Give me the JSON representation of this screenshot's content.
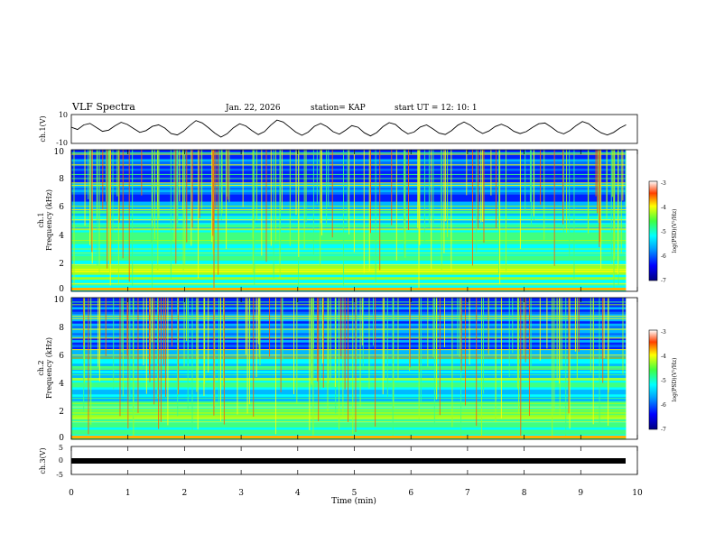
{
  "header": {
    "title": "VLF Spectra",
    "date": "Jan. 22, 2026",
    "station": "station= KAP",
    "start": "start  UT =   12: 10: 1"
  },
  "chart_data": [
    {
      "type": "line",
      "name": "ch1-timeseries",
      "ylabel": "ch.1(V)",
      "ylim": [
        -10,
        10
      ],
      "yticks": [
        "10",
        "-10"
      ],
      "series": [
        {
          "name": "ch.1",
          "values": [
            1.2,
            -0.4,
            2.8,
            3.9,
            1.1,
            -1.6,
            -0.8,
            2.2,
            4.6,
            3.1,
            0.3,
            -2.4,
            -1.1,
            1.8,
            2.9,
            0.6,
            -3.2,
            -4.1,
            -1.5,
            2.4,
            5.8,
            4.2,
            0.9,
            -2.8,
            -5.6,
            -3.3,
            0.8,
            3.6,
            2.1,
            -1.2,
            -3.9,
            -1.8,
            2.6,
            6.2,
            4.8,
            1.4,
            -2.1,
            -4.4,
            -2.2,
            1.9,
            3.8,
            1.6,
            -1.9,
            -3.6,
            -0.9,
            2.3,
            1.2,
            -2.6,
            -4.8,
            -2.5,
            1.6,
            4.4,
            3.2,
            -0.6,
            -3.4,
            -2.1,
            1.4,
            2.8,
            0.2,
            -2.9,
            -3.8,
            -1.2,
            2.6,
            4.9,
            2.7,
            -0.8,
            -3.1,
            -1.4,
            1.7,
            3.3,
            1.5,
            -1.6,
            -3.2,
            -1.8,
            1.1,
            3.6,
            4.1,
            1.3,
            -1.9,
            -3.4,
            -1.1,
            2.4,
            5.2,
            3.6,
            0.2,
            -2.6,
            -4.2,
            -2.4,
            0.6,
            2.9
          ]
        }
      ],
      "x_range_min": [
        0,
        9.8
      ]
    },
    {
      "type": "heatmap",
      "name": "ch1-spectrogram",
      "ylabel": "ch.1",
      "ylabel2": "Frequency (kHz)",
      "ylim": [
        0,
        10
      ],
      "xlim": [
        0,
        10
      ],
      "yticks": [
        "0",
        "2",
        "4",
        "6",
        "8",
        "10"
      ],
      "colorbar": {
        "label": "log(PSD)(V²/Hz)",
        "range": [
          -7,
          -3
        ],
        "ticks": [
          "-3",
          "-4",
          "-5",
          "-6",
          "-7"
        ]
      }
    },
    {
      "type": "heatmap",
      "name": "ch2-spectrogram",
      "ylabel": "ch.2",
      "ylabel2": "Frequency (kHz)",
      "ylim": [
        0,
        10
      ],
      "xlim": [
        0,
        10
      ],
      "yticks": [
        "0",
        "2",
        "4",
        "6",
        "8",
        "10"
      ],
      "colorbar": {
        "label": "log(PSD)(V²/Hz)",
        "range": [
          -7,
          -3
        ],
        "ticks": [
          "-3",
          "-4",
          "-5",
          "-6",
          "-7"
        ]
      }
    },
    {
      "type": "line",
      "name": "ch3-timeseries",
      "ylabel": "ch.3(V)",
      "ylim": [
        -5,
        5
      ],
      "yticks": [
        "5",
        "0",
        "-5"
      ],
      "series": [
        {
          "name": "ch.3",
          "values": [
            -1,
            -1
          ]
        }
      ],
      "xlabel": "Time  (min)",
      "xlim": [
        0,
        10
      ],
      "xticks": [
        "0",
        "1",
        "2",
        "3",
        "4",
        "5",
        "6",
        "7",
        "8",
        "9",
        "10"
      ]
    }
  ]
}
